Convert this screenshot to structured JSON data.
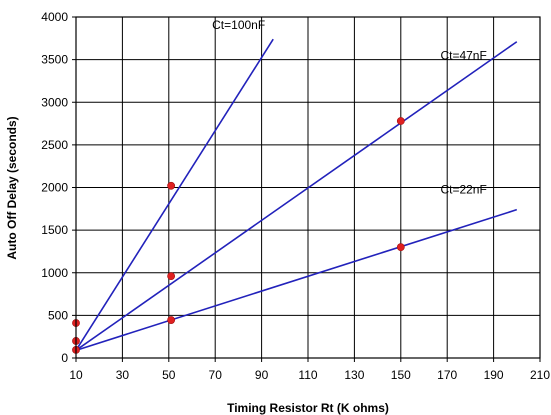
{
  "chart_data": {
    "type": "line",
    "title": "",
    "xlabel": "Timing Resistor Rt (K ohms)",
    "ylabel": "Auto Off Delay (seconds)",
    "xlim": [
      10,
      210
    ],
    "ylim": [
      0,
      4000
    ],
    "x_ticks": [
      10,
      30,
      50,
      70,
      90,
      110,
      130,
      150,
      170,
      190,
      210
    ],
    "y_ticks": [
      0,
      500,
      1000,
      1500,
      2000,
      2500,
      3000,
      3500,
      4000
    ],
    "grid": true,
    "legend": "none",
    "series": [
      {
        "name": "Ct=100nF",
        "color": "#2222bb",
        "line": [
          [
            10,
            90
          ],
          [
            95,
            3740
          ]
        ],
        "points": [
          [
            10,
            410
          ],
          [
            51,
            2020
          ]
        ]
      },
      {
        "name": "Ct=47nF",
        "color": "#2222bb",
        "line": [
          [
            10,
            90
          ],
          [
            200,
            3710
          ]
        ],
        "points": [
          [
            10,
            200
          ],
          [
            51,
            960
          ],
          [
            150,
            2780
          ]
        ]
      },
      {
        "name": "Ct=22nF",
        "color": "#2222bb",
        "line": [
          [
            10,
            90
          ],
          [
            200,
            1740
          ]
        ],
        "points": [
          [
            10,
            95
          ],
          [
            51,
            445
          ],
          [
            150,
            1300
          ]
        ]
      }
    ],
    "marker_color": "#e02020"
  }
}
